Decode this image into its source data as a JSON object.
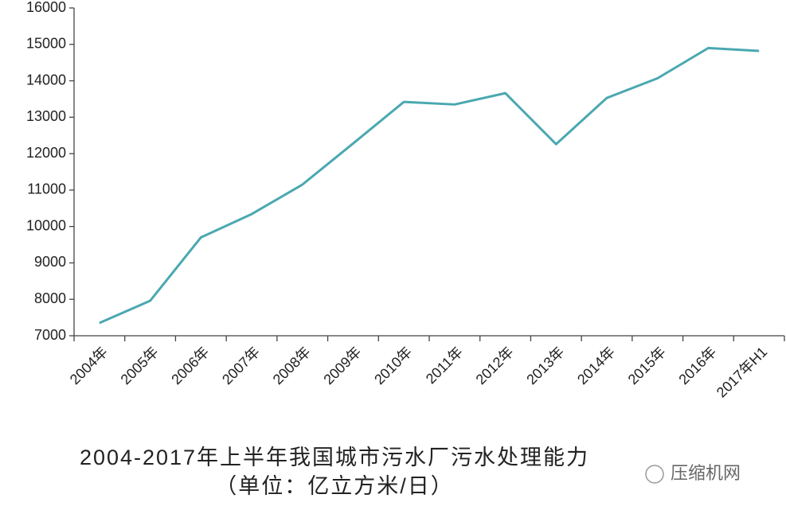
{
  "chart_data": {
    "type": "line",
    "title": "2004-2017年上半年我国城市污水厂污水处理能力",
    "subtitle": "（单位：亿立方米/日）",
    "watermark": "压缩机网",
    "categories": [
      "2004年",
      "2005年",
      "2006年",
      "2007年",
      "2008年",
      "2009年",
      "2010年",
      "2011年",
      "2012年",
      "2013年",
      "2014年",
      "2015年",
      "2016年",
      "2017年H1"
    ],
    "values": [
      7350,
      7960,
      9700,
      10340,
      11150,
      12280,
      13420,
      13350,
      13660,
      12260,
      13530,
      14070,
      14900,
      14820
    ],
    "color": "#4aa8b0",
    "ylim": [
      7000,
      16000
    ],
    "yticks": [
      7000,
      8000,
      9000,
      10000,
      11000,
      12000,
      13000,
      14000,
      15000,
      16000
    ],
    "grid": false
  }
}
